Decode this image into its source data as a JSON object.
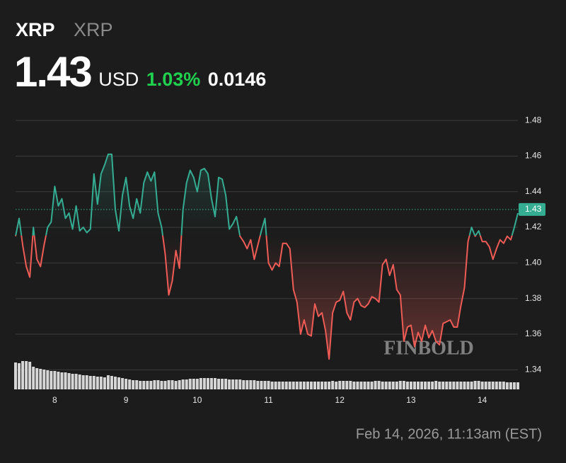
{
  "chart_data": {
    "type": "line",
    "title": "XRP",
    "subtitle": "XRP",
    "price": 1.43,
    "currency": "USD",
    "change_percent": "1.03%",
    "change": 0.0146,
    "timestamp": "Feb 14, 2026, 11:13am (EST)",
    "watermark": "FINBOLD",
    "up_color": "#35ad93",
    "down_color": "#ef5c56",
    "change_color": "#1fd14e",
    "volume_color": "#d6d6d6",
    "grid": true,
    "xlim": [
      7.45,
      14.5
    ],
    "xticks": [
      8,
      9,
      10,
      11,
      12,
      13,
      14
    ],
    "ylim": [
      1.329,
      1.488
    ],
    "yticks": [
      1.34,
      1.36,
      1.38,
      {
        "value": 1.4,
        "label": "1.40"
      },
      1.42,
      1.44,
      1.46,
      1.48
    ],
    "x": [
      7.45,
      7.5,
      7.55,
      7.6,
      7.65,
      7.7,
      7.75,
      7.8,
      7.85,
      7.9,
      7.95,
      8,
      8.05,
      8.1,
      8.15,
      8.2,
      8.25,
      8.3,
      8.35,
      8.4,
      8.45,
      8.5,
      8.55,
      8.6,
      8.65,
      8.7,
      8.75,
      8.8,
      8.85,
      8.9,
      8.95,
      9,
      9.05,
      9.1,
      9.15,
      9.2,
      9.25,
      9.3,
      9.35,
      9.4,
      9.45,
      9.5,
      9.55,
      9.6,
      9.65,
      9.7,
      9.75,
      9.8,
      9.85,
      9.9,
      9.95,
      10,
      10.05,
      10.1,
      10.15,
      10.2,
      10.25,
      10.3,
      10.35,
      10.4,
      10.45,
      10.5,
      10.55,
      10.6,
      10.65,
      10.7,
      10.75,
      10.8,
      10.85,
      10.9,
      10.95,
      11,
      11.05,
      11.1,
      11.15,
      11.2,
      11.25,
      11.3,
      11.35,
      11.4,
      11.45,
      11.5,
      11.55,
      11.6,
      11.65,
      11.7,
      11.75,
      11.8,
      11.85,
      11.9,
      11.95,
      12,
      12.05,
      12.1,
      12.15,
      12.2,
      12.25,
      12.3,
      12.35,
      12.4,
      12.45,
      12.5,
      12.55,
      12.6,
      12.65,
      12.7,
      12.75,
      12.8,
      12.85,
      12.9,
      12.95,
      13,
      13.05,
      13.1,
      13.15,
      13.2,
      13.25,
      13.3,
      13.35,
      13.4,
      13.45,
      13.5,
      13.55,
      13.6,
      13.65,
      13.7,
      13.75,
      13.8,
      13.85,
      13.9,
      13.95,
      14,
      14.05,
      14.1,
      14.15,
      14.2,
      14.25,
      14.3,
      14.35,
      14.4,
      14.45,
      14.5
    ],
    "values": [
      1.415,
      1.425,
      1.41,
      1.398,
      1.392,
      1.42,
      1.402,
      1.398,
      1.41,
      1.42,
      1.423,
      1.443,
      1.432,
      1.436,
      1.425,
      1.428,
      1.419,
      1.432,
      1.418,
      1.42,
      1.417,
      1.419,
      1.45,
      1.433,
      1.45,
      1.455,
      1.461,
      1.461,
      1.43,
      1.418,
      1.438,
      1.448,
      1.432,
      1.425,
      1.436,
      1.428,
      1.445,
      1.451,
      1.446,
      1.451,
      1.428,
      1.42,
      1.405,
      1.382,
      1.39,
      1.407,
      1.397,
      1.43,
      1.445,
      1.452,
      1.448,
      1.44,
      1.452,
      1.453,
      1.45,
      1.436,
      1.426,
      1.448,
      1.447,
      1.438,
      1.419,
      1.422,
      1.426,
      1.415,
      1.412,
      1.408,
      1.413,
      1.402,
      1.41,
      1.418,
      1.425,
      1.4,
      1.396,
      1.4,
      1.398,
      1.411,
      1.411,
      1.408,
      1.385,
      1.378,
      1.36,
      1.368,
      1.36,
      1.359,
      1.377,
      1.37,
      1.372,
      1.362,
      1.346,
      1.372,
      1.378,
      1.379,
      1.384,
      1.372,
      1.368,
      1.378,
      1.38,
      1.376,
      1.375,
      1.377,
      1.381,
      1.38,
      1.378,
      1.399,
      1.402,
      1.393,
      1.399,
      1.385,
      1.382,
      1.356,
      1.364,
      1.365,
      1.353,
      1.361,
      1.356,
      1.365,
      1.358,
      1.362,
      1.356,
      1.354,
      1.366,
      1.367,
      1.368,
      1.364,
      1.364,
      1.376,
      1.386,
      1.412,
      1.42,
      1.415,
      1.418,
      1.412,
      1.412,
      1.409,
      1.402,
      1.408,
      1.413,
      1.411,
      1.415,
      1.413,
      1.42,
      1.428
    ],
    "volume": [
      38,
      37,
      40,
      40,
      39,
      32,
      30,
      29,
      28,
      27,
      26,
      26,
      25,
      24,
      24,
      23,
      22,
      22,
      21,
      20,
      20,
      19,
      19,
      18,
      18,
      17,
      20,
      19,
      18,
      17,
      16,
      15,
      14,
      13,
      13,
      12,
      12,
      12,
      12,
      13,
      13,
      12,
      12,
      13,
      13,
      12,
      13,
      14,
      14,
      15,
      15,
      15,
      16,
      16,
      16,
      16,
      16,
      15,
      15,
      15,
      14,
      14,
      14,
      14,
      13,
      13,
      13,
      13,
      12,
      12,
      12,
      12,
      11,
      11,
      11,
      11,
      11,
      11,
      11,
      11,
      11,
      11,
      11,
      11,
      11,
      11,
      11,
      11,
      11,
      12,
      11,
      12,
      12,
      12,
      12,
      11,
      11,
      11,
      11,
      11,
      11,
      12,
      12,
      11,
      11,
      11,
      11,
      11,
      12,
      12,
      11,
      11,
      11,
      11,
      11,
      11,
      11,
      11,
      12,
      11,
      11,
      11,
      11,
      11,
      11,
      11,
      11,
      11,
      11,
      12,
      12,
      11,
      11,
      11,
      11,
      11,
      11,
      11,
      10,
      10,
      10,
      10
    ]
  }
}
